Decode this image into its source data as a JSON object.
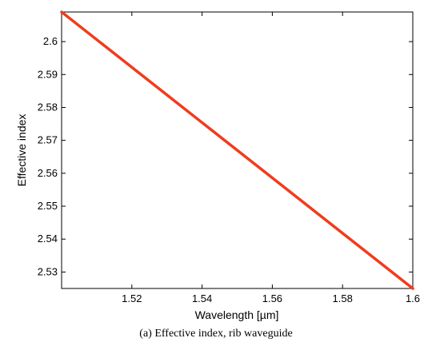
{
  "chart_data": {
    "type": "line",
    "title": "",
    "xlabel": "Wavelength [µm]",
    "ylabel": "Effective index",
    "xlim": [
      1.5,
      1.6
    ],
    "ylim": [
      2.525,
      2.609
    ],
    "x_ticks": [
      "1.52",
      "1.54",
      "1.56",
      "1.58",
      "1.6"
    ],
    "y_ticks": [
      "2.53",
      "2.54",
      "2.55",
      "2.56",
      "2.57",
      "2.58",
      "2.59",
      "2.6"
    ],
    "grid": false,
    "series": [
      {
        "color": "#f03c1e",
        "x": [
          1.5,
          1.6
        ],
        "y": [
          2.609,
          2.525
        ]
      }
    ]
  },
  "caption": "(a) Effective index, rib waveguide"
}
